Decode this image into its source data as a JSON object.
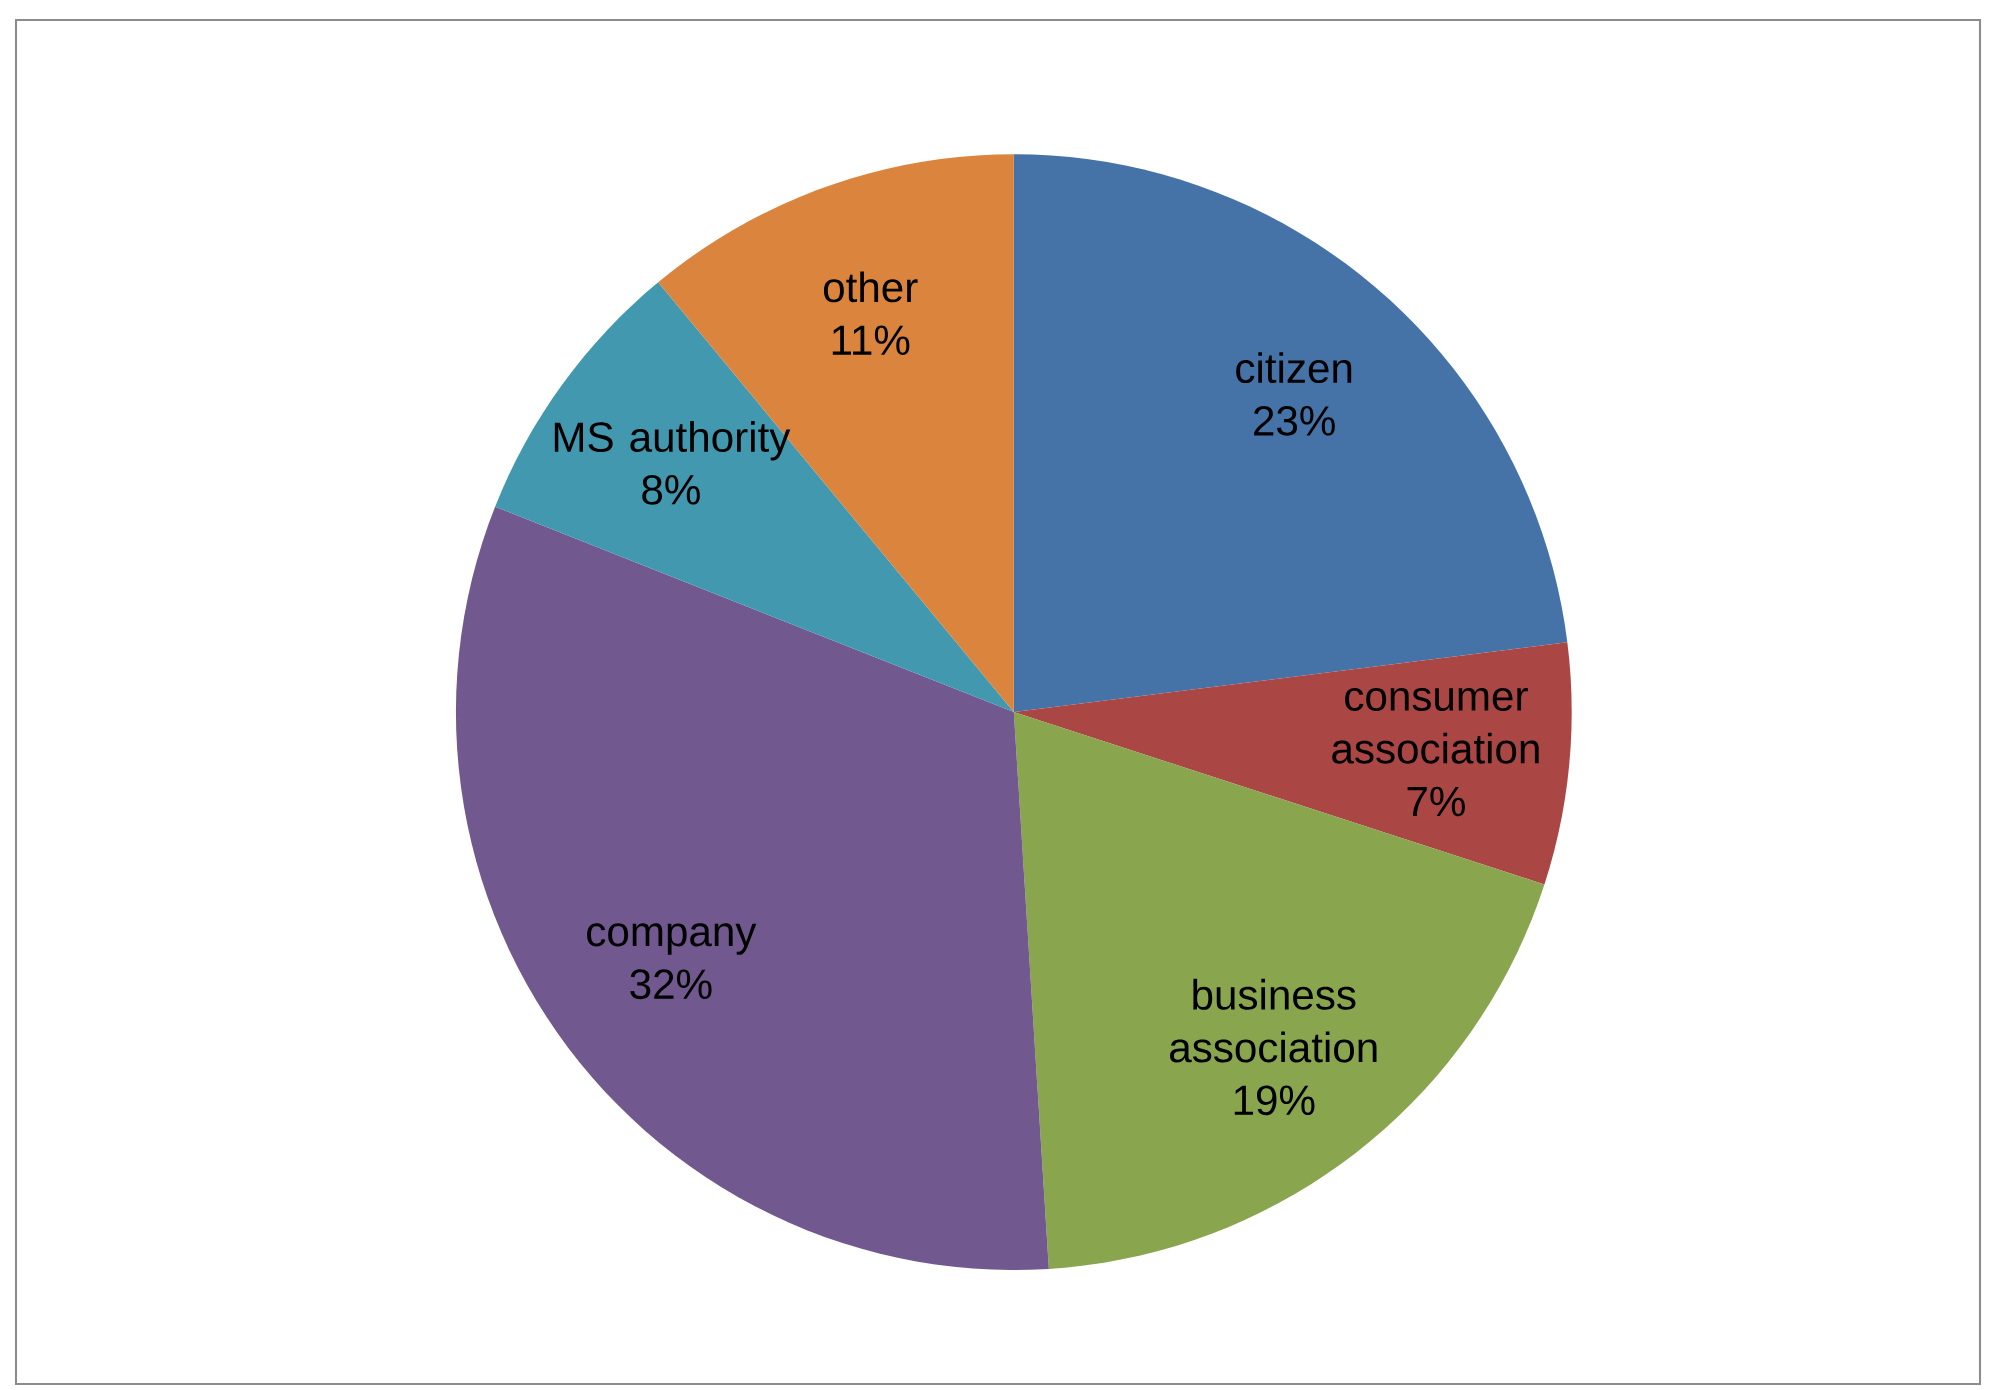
{
  "chart_data": {
    "type": "pie",
    "categories": [
      "citizen",
      "consumer association",
      "business association",
      "company",
      "MS authority",
      "other"
    ],
    "values": [
      23,
      7,
      19,
      32,
      8,
      11
    ],
    "value_labels": [
      "23%",
      "7%",
      "19%",
      "32%",
      "8%",
      "11%"
    ],
    "colors": [
      "#4572a7",
      "#aa4643",
      "#89a54e",
      "#71588f",
      "#4198af",
      "#db843d"
    ]
  }
}
